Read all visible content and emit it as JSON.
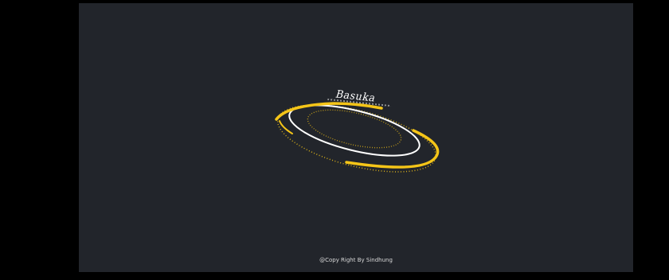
{
  "screen": {
    "background": "#000000",
    "panel_color": "#22252b"
  },
  "loader": {
    "brand_text": "Basuka",
    "accent_color": "#f5c518",
    "ring_color": "#ffffff",
    "icon": "spinning-rings-icon"
  },
  "footer": {
    "copyright": "@Copy Right By Sindhung"
  }
}
